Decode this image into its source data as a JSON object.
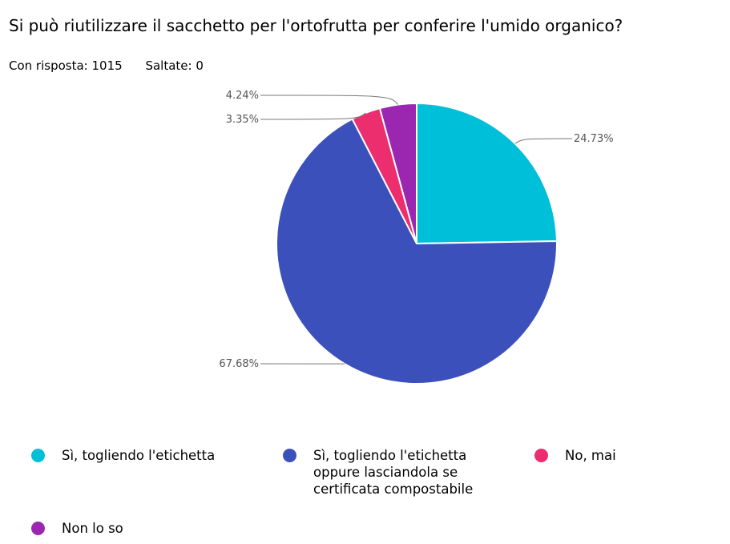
{
  "question": "Si può riutilizzare il sacchetto per l'ortofrutta per conferire l'umido organico?",
  "stats": {
    "answered": "Con risposta: 1015",
    "skipped": "Saltate: 0"
  },
  "chart_data": {
    "type": "pie",
    "categories": [
      "Sì, togliendo l'etichetta",
      "Sì, togliendo l'etichetta oppure lasciandola se certificata compostabile",
      "No, mai",
      "Non lo so"
    ],
    "values": [
      24.73,
      67.68,
      3.35,
      4.24
    ],
    "data_labels": [
      "24.73%",
      "67.68%",
      "3.35%",
      "4.24%"
    ],
    "colors": [
      "#00bfd8",
      "#3c50bc",
      "#ec2d6e",
      "#9b27b0"
    ],
    "legend_position": "bottom"
  }
}
